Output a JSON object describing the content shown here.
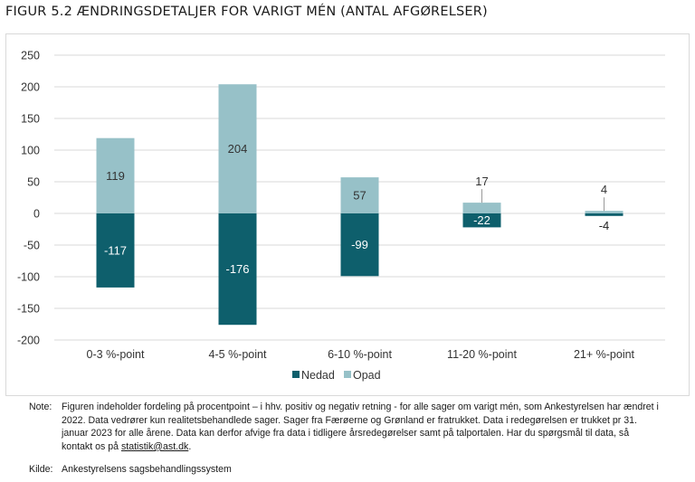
{
  "title": "FIGUR 5.2 ÆNDRINGSDETALJER FOR VARIGT MÉN (ANTAL AFGØRELSER)",
  "colors": {
    "nedad": "#0e5f6c",
    "opad": "#97c1c8",
    "grid": "#d9d9d9",
    "axis_text": "#333333"
  },
  "chart_data": {
    "type": "bar",
    "stacked": true,
    "categories": [
      "0-3 %-point",
      "4-5 %-point",
      "6-10 %-point",
      "11-20 %-point",
      "21+ %-point"
    ],
    "series": [
      {
        "name": "Nedad",
        "values": [
          -117,
          -176,
          -99,
          -22,
          -4
        ]
      },
      {
        "name": "Opad",
        "values": [
          119,
          204,
          57,
          17,
          4
        ]
      }
    ],
    "ylim": [
      -200,
      250
    ],
    "yticks": [
      250,
      200,
      150,
      100,
      50,
      0,
      -50,
      -100,
      -150,
      -200
    ],
    "grid": true,
    "legend_position": "bottom"
  },
  "note": {
    "label": "Note:",
    "text": "Figuren indeholder fordeling på procentpoint – i hhv. positiv og negativ retning - for alle sager om varigt mén, som Ankestyrelsen har ændret i 2022. Data vedrører kun realitetsbehandlede sager. Sager fra Færøerne og Grønland er fratrukket. Data i redegørelsen er trukket pr 31. januar 2023 for alle årene. Data kan derfor afvige fra data i tidligere årsredegørelser samt på talportalen. Har du spørgsmål til data, så kontakt os på ",
    "link": "statistik@ast.dk",
    "end": "."
  },
  "source": {
    "label": "Kilde:",
    "text": "Ankestyrelsens sagsbehandlingssystem"
  }
}
